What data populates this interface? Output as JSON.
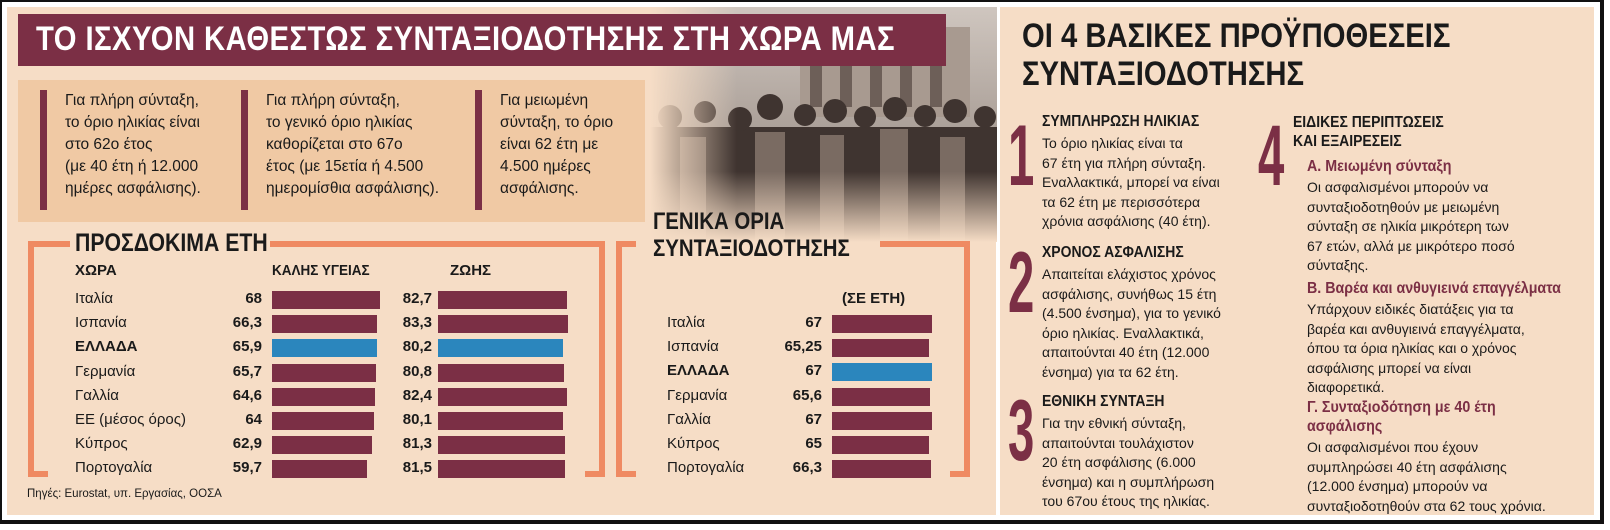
{
  "title": "ΤΟ ΙΣΧΥΟΝ ΚΑΘΕΣΤΩΣ ΣΥΝΤΑΞΙΟΔΟΤΗΣΗΣ ΣΤΗ ΧΩΡΑ ΜΑΣ",
  "info_boxes": [
    "Για πλήρη σύνταξη,\nτο όριο ηλικίας είναι\nστο 62ο έτος\n(με 40 έτη ή 12.000\nημέρες ασφάλισης).",
    "Για πλήρη σύνταξη,\nτο γενικό όριο ηλικίας\nκαθορίζεται στο 67ο\nέτος (με 15ετία ή 4.500\nημερομίσθια ασφάλισης).",
    "Για μειωμένη\nσύνταξη, το όριο\nείναι 62 έτη με\n4.500 ημέρες\nασφάλισης."
  ],
  "colors": {
    "maroon": "#7b2f45",
    "highlight": "#2b86bd",
    "orange": "#ef8a62",
    "background": "#f6ddc6"
  },
  "chart_data": [
    {
      "type": "bar",
      "title": "ΠΡΟΣΔΟΚΙΜΑ ΕΤΗ",
      "category_header": "ΧΩΡΑ",
      "categories": [
        "Ιταλία",
        "Ισπανία",
        "ΕΛΛΑΔΑ",
        "Γερμανία",
        "Γαλλία",
        "ΕΕ (μέσος όρος)",
        "Κύπρος",
        "Πορτογαλία"
      ],
      "highlight_category": "ΕΛΛΑΔΑ",
      "series": [
        {
          "name": "ΚΑΛΗΣ ΥΓΕΙΑΣ",
          "values": [
            68,
            66.3,
            65.9,
            65.7,
            64.6,
            64,
            62.9,
            59.7
          ],
          "labels": [
            "68",
            "66,3",
            "65,9",
            "65,7",
            "64,6",
            "64",
            "62,9",
            "59,7"
          ]
        },
        {
          "name": "ΖΩΗΣ",
          "values": [
            82.7,
            83.3,
            80.2,
            80.8,
            82.4,
            80.1,
            81.3,
            81.5
          ],
          "labels": [
            "82,7",
            "83,3",
            "80,2",
            "80,8",
            "82,4",
            "80,1",
            "81,3",
            "81,5"
          ]
        }
      ]
    },
    {
      "type": "bar",
      "title": "ΓΕΝΙΚΑ ΟΡΙΑ ΣΥΝΤΑΞΙΟΔΟΤΗΣΗΣ",
      "title_lines": [
        "ΓΕΝΙΚΑ ΟΡΙΑ",
        "ΣΥΝΤΑΞΙΟΔΟΤΗΣΗΣ"
      ],
      "unit_label": "(ΣΕ ΕΤΗ)",
      "categories": [
        "Ιταλία",
        "Ισπανία",
        "ΕΛΛΑΔΑ",
        "Γερμανία",
        "Γαλλία",
        "Κύπρος",
        "Πορτογαλία"
      ],
      "highlight_category": "ΕΛΛΑΔΑ",
      "values": [
        67,
        65.25,
        67,
        65.6,
        67,
        65,
        66.3
      ],
      "labels": [
        "67",
        "65,25",
        "67",
        "65,6",
        "67",
        "65",
        "66,3"
      ]
    }
  ],
  "source": "Πηγές: Eurostat, υπ. Εργασίας, ΟΟΣΑ",
  "conditions": {
    "title_lines": [
      "ΟΙ 4 ΒΑΣΙΚΕΣ ΠΡΟΫΠΟΘΕΣΕΙΣ",
      "ΣΥΝΤΑΞΙΟΔΟΤΗΣΗΣ"
    ],
    "items": [
      {
        "number": "1",
        "heading": "ΣΥΜΠΛΗΡΩΣΗ ΗΛΙΚΙΑΣ",
        "text": "Το όριο ηλικίας είναι τα\n67 έτη για πλήρη σύνταξη.\nΕναλλακτικά, μπορεί να είναι\nτα 62 έτη με περισσότερα\nχρόνια ασφάλισης (40 έτη)."
      },
      {
        "number": "2",
        "heading": "ΧΡΟΝΟΣ ΑΣΦΑΛΙΣΗΣ",
        "text": "Απαιτείται ελάχιστος χρόνος\nασφάλισης, συνήθως 15 έτη\n(4.500 ένσημα), για το γενικό\nόριο ηλικίας. Εναλλακτικά,\nαπαιτούνται 40 έτη (12.000\nένσημα) για τα 62 έτη."
      },
      {
        "number": "3",
        "heading": "ΕΘΝΙΚΗ ΣΥΝΤΑΞΗ",
        "text": "Για την εθνική σύνταξη,\nαπαιτούνται τουλάχιστον\n20 έτη ασφάλισης (6.000\nένσημα) και η συμπλήρωση\nτου 67ου έτους της ηλικίας."
      },
      {
        "number": "4",
        "heading_lines": [
          "ΕΙΔΙΚΕΣ ΠΕΡΙΠΤΩΣΕΙΣ",
          "ΚΑΙ ΕΞΑΙΡΕΣΕΙΣ"
        ],
        "subs": [
          {
            "heading": "Α. Μειωμένη σύνταξη",
            "text": "Οι ασφαλισμένοι μπορούν να\nσυνταξιοδοτηθούν με μειωμένη\nσύνταξη σε ηλικία μικρότερη των\n67 ετών, αλλά με μικρότερο ποσό\nσύνταξης."
          },
          {
            "heading": "Β. Βαρέα και ανθυγιεινά επαγγέλματα",
            "text": "Υπάρχουν ειδικές διατάξεις για τα\nβαρέα και ανθυγιεινά επαγγέλματα,\nόπου τα όρια ηλικίας και ο χρόνος\nασφάλισης μπορεί να είναι\nδιαφορετικά."
          },
          {
            "heading_lines": [
              "Γ. Συνταξιοδότηση με 40 έτη",
              "ασφάλισης"
            ],
            "text": "Οι ασφαλισμένοι που έχουν\nσυμπληρώσει 40 έτη ασφάλισης\n(12.000 ένσημα) μπορούν να\nσυνταξιοδοτηθούν στα 62 τους χρόνια."
          }
        ]
      }
    ]
  }
}
